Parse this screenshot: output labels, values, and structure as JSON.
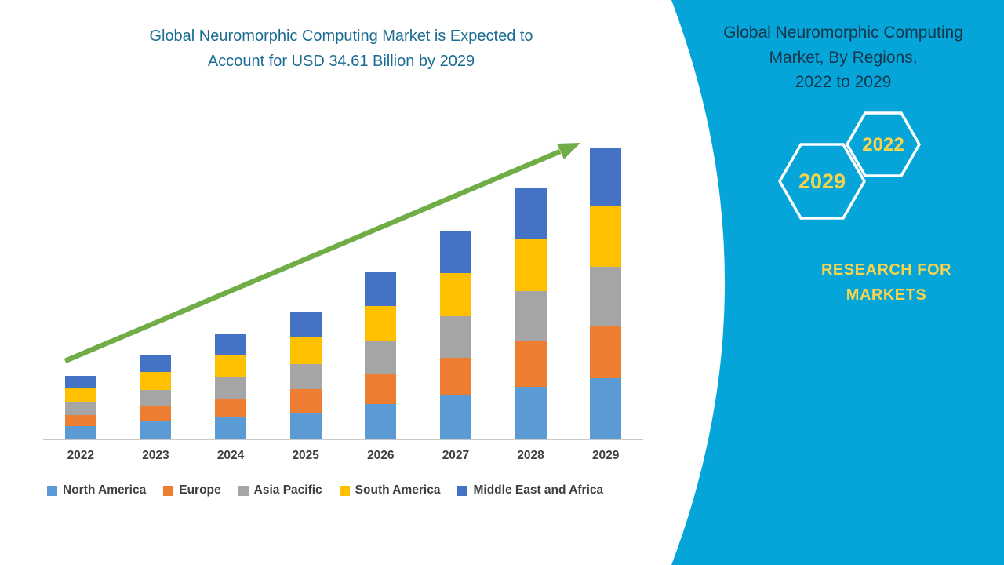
{
  "left": {
    "title_line1": "Global Neuromorphic Computing Market is Expected to",
    "title_line2": "Account for USD 34.61 Billion by 2029"
  },
  "right": {
    "title_line1": "Global Neuromorphic Computing",
    "title_line2": "Market, By Regions,",
    "title_line3": "2022 to 2029",
    "hexagons": [
      {
        "label": "2029"
      },
      {
        "label": "2022"
      }
    ],
    "brand_line1": "RESEARCH FOR",
    "brand_line2": "MARKETS"
  },
  "colors": {
    "panel_cyan": "#05A5DA",
    "title_teal": "#1B6C92",
    "accent_yellow": "#F7D44C",
    "arrow_green": "#70AD47",
    "axis_gray": "#C9C9C9",
    "label_gray": "#3F3F3F",
    "panel_text": "#14364A"
  },
  "chart_data": {
    "type": "bar",
    "stacked": true,
    "title": "Global Neuromorphic Computing Market is Expected to Account for USD 34.61 Billion by 2029",
    "categories": [
      "2022",
      "2023",
      "2024",
      "2025",
      "2026",
      "2027",
      "2028",
      "2029"
    ],
    "series": [
      {
        "name": "North America",
        "color": "#5B9BD5",
        "values": [
          1.58,
          2.1,
          2.63,
          3.19,
          4.16,
          5.19,
          6.26,
          7.27
        ]
      },
      {
        "name": "Europe",
        "color": "#ED7D31",
        "values": [
          1.35,
          1.8,
          2.25,
          2.74,
          3.56,
          4.45,
          5.36,
          6.23
        ]
      },
      {
        "name": "Asia Pacific",
        "color": "#A5A5A5",
        "values": [
          1.5,
          2.0,
          2.5,
          3.04,
          3.96,
          4.94,
          5.96,
          6.92
        ]
      },
      {
        "name": "South America",
        "color": "#FFC000",
        "values": [
          1.58,
          2.1,
          2.63,
          3.19,
          4.16,
          5.19,
          6.26,
          7.27
        ]
      },
      {
        "name": "Middle East and Africa",
        "color": "#4472C4",
        "values": [
          1.5,
          2.0,
          2.5,
          3.04,
          3.96,
          4.94,
          5.96,
          6.92
        ]
      }
    ],
    "totals": [
      7.51,
      10.0,
      12.51,
      15.2,
      19.8,
      24.71,
      29.8,
      34.61
    ],
    "xlabel": "",
    "ylabel": "",
    "ylim": [
      0,
      40
    ],
    "grid": false,
    "legend_position": "bottom",
    "annotation": "green upward trend arrow from 2022 bar to 2029 bar"
  }
}
